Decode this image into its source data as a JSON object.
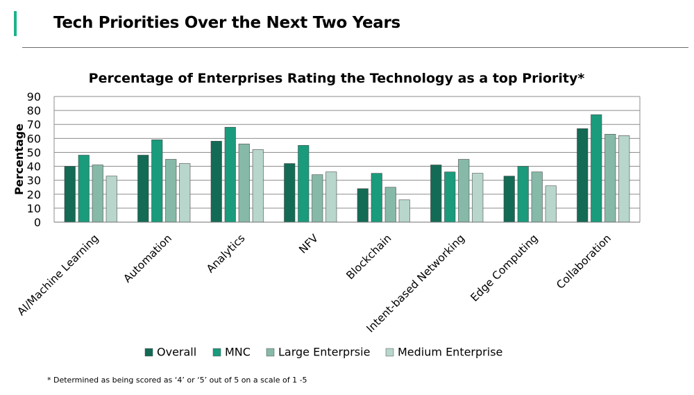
{
  "page": {
    "title": "Tech Priorities Over the Next Two Years",
    "footnote": "* Determined as being scored as ‘4’ or ‘5’ out of 5 on a scale of 1 -5",
    "accent_color": "#1db38a"
  },
  "chart_data": {
    "type": "bar",
    "title": "Percentage of Enterprises Rating the Technology as a top Priority*",
    "xlabel": "",
    "ylabel": "Percentage",
    "ylim": [
      0,
      90
    ],
    "yticks": [
      0,
      10,
      20,
      30,
      40,
      50,
      60,
      70,
      80,
      90
    ],
    "grid": true,
    "legend_position": "bottom",
    "categories": [
      "AI/Machine Learning",
      "Automation",
      "Analytics",
      "NFV",
      "Blockchain",
      "Intent-based Networking",
      "Edge Computing",
      "Collaboration"
    ],
    "series": [
      {
        "name": "Overall",
        "color": "#136b55",
        "values": [
          40,
          48,
          58,
          42,
          24,
          41,
          33,
          67
        ]
      },
      {
        "name": "MNC",
        "color": "#1a9b7c",
        "values": [
          48,
          59,
          68,
          55,
          35,
          36,
          40,
          77
        ]
      },
      {
        "name": "Large Enterprsie",
        "color": "#86b9a8",
        "values": [
          41,
          45,
          56,
          34,
          25,
          45,
          36,
          63
        ]
      },
      {
        "name": "Medium Enterprise",
        "color": "#b8d6cb",
        "values": [
          33,
          42,
          52,
          36,
          16,
          35,
          26,
          62
        ]
      }
    ]
  }
}
